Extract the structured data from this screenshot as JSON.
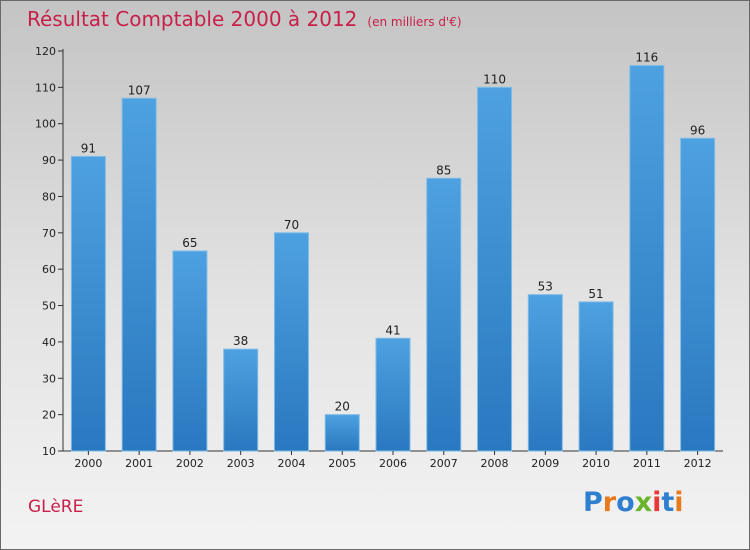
{
  "title": "Résultat Comptable 2000 à 2012",
  "subtitle": "(en milliers d'€)",
  "commune": "GLèRE",
  "logo": {
    "letters": [
      "P",
      "r",
      "o",
      "x",
      "i",
      "t",
      "i"
    ],
    "colors": [
      "#2f7fd0",
      "#e87a1c",
      "#2f7fd0",
      "#6ab42c",
      "#e83838",
      "#2f7fd0",
      "#e87a1c"
    ]
  },
  "colors": {
    "bar": "#4ea1e0",
    "bar_dark": "#2a78c0",
    "title": "#c8204a"
  },
  "chart_data": {
    "type": "bar",
    "title": "Résultat Comptable 2000 à 2012",
    "subtitle": "(en milliers d'€)",
    "xlabel": "",
    "ylabel": "",
    "categories": [
      "2000",
      "2001",
      "2002",
      "2003",
      "2004",
      "2005",
      "2006",
      "2007",
      "2008",
      "2009",
      "2010",
      "2011",
      "2012"
    ],
    "values": [
      91,
      107,
      65,
      38,
      70,
      20,
      41,
      85,
      110,
      53,
      51,
      116,
      96
    ],
    "ylim": [
      10,
      120
    ],
    "yticks": [
      10,
      20,
      30,
      40,
      50,
      60,
      70,
      80,
      90,
      100,
      110,
      120
    ],
    "grid": false,
    "legend": "none"
  }
}
